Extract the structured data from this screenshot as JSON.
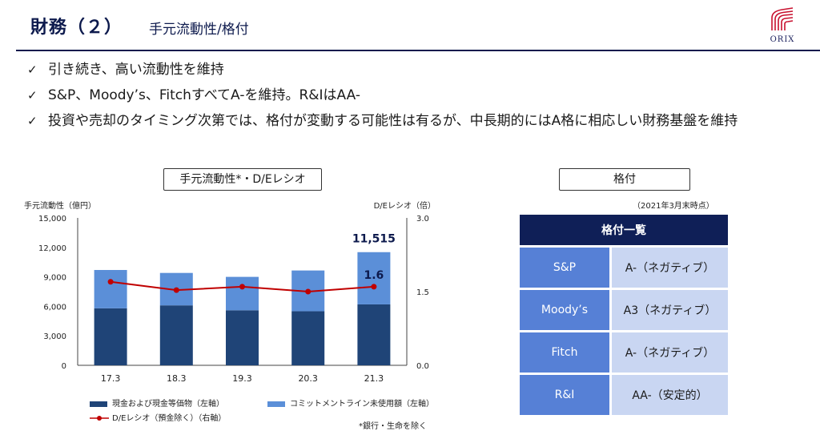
{
  "header": {
    "title_main": "財務（２）",
    "title_sub": "手元流動性/格付",
    "logo_text": "ORIX"
  },
  "bullets": [
    "引き続き、高い流動性を維持",
    "S&P、Moody’s、FitchすべてA-を維持。R&IはAA-",
    "投資や売却のタイミング次第では、格付が変動する可能性は有るが、中長期的にはA格に相応しい財務基盤を維持"
  ],
  "chart_box_label": "手元流動性*・D/Eレシオ",
  "rating_box_label": "格付",
  "chart_data": {
    "type": "bar",
    "stacked": true,
    "categories": [
      "17.3",
      "18.3",
      "19.3",
      "20.3",
      "21.3"
    ],
    "series": [
      {
        "name": "現金および現金等価物（左軸）",
        "values": [
          5800,
          6100,
          5600,
          5500,
          6200
        ],
        "color": "#1f4477",
        "axis": "left"
      },
      {
        "name": "コミットメントライン未使用額（左軸）",
        "values": [
          3900,
          3300,
          3400,
          4150,
          5315
        ],
        "color": "#5b8fd8",
        "axis": "left"
      },
      {
        "name": "D/Eレシオ（預金除く）（右軸）",
        "type": "line",
        "values": [
          1.7,
          1.53,
          1.6,
          1.5,
          1.6
        ],
        "color": "#c00000",
        "axis": "right"
      }
    ],
    "ylabel": "手元流動性（億円）",
    "y2label": "D/Eレシオ（倍）",
    "ylim": [
      0,
      15000
    ],
    "yticks": [
      "0",
      "3,000",
      "6,000",
      "9,000",
      "12,000",
      "15,000"
    ],
    "y2lim": [
      0,
      3.0
    ],
    "y2ticks": [
      "0.0",
      "1.5",
      "3.0"
    ],
    "annotations": {
      "total_label": "11,515",
      "de_label": "1.6"
    },
    "legend_placement": "bottom",
    "grid": false
  },
  "footnote": "*銀行・生命を除く",
  "ratings": {
    "as_of": "（2021年3月末時点）",
    "header": "格付一覧",
    "rows": [
      {
        "agency": "S&P",
        "grade": "A-（ネガティブ）"
      },
      {
        "agency": "Moody’s",
        "grade": "A3（ネガティブ）"
      },
      {
        "agency": "Fitch",
        "grade": "A-（ネガティブ）"
      },
      {
        "agency": "R&I",
        "grade": "AA-（安定的）"
      }
    ]
  }
}
